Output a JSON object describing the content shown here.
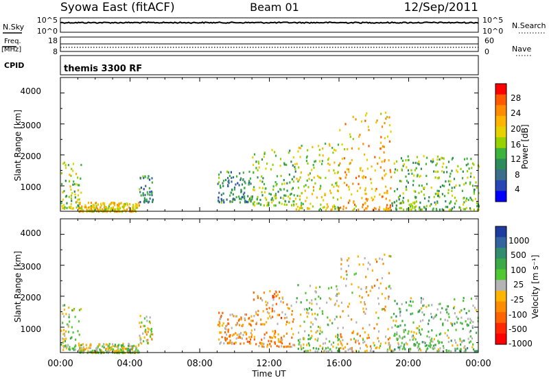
{
  "header": {
    "station": "Syowa East (fitACF)",
    "beam": "Beam 01",
    "date": "12/Sep/2011"
  },
  "top_panels": {
    "nsky_label": "N.Sky",
    "nsky_ticks": [
      "10^5",
      "10^0"
    ],
    "nsearch_label": "N.Search",
    "nsearch_ticks": [
      "10^5",
      "10^0"
    ],
    "freq_label": "Freq.",
    "freq_unit": "[MHz]",
    "freq_ticks": [
      "18",
      "8"
    ],
    "nave_label": "Nave",
    "nave_ticks": [
      "60",
      "0"
    ],
    "cpid_label": "CPID",
    "cpid_value": "themis 3300 RF"
  },
  "power_panel": {
    "ylabel": "Slant Range [km]",
    "yticks": [
      "4000",
      "3000",
      "2000",
      "1000"
    ],
    "colorbar_label": "Power [dB]",
    "colorbar_ticks": [
      "28",
      "24",
      "20",
      "16",
      "12",
      "8",
      "4"
    ],
    "colorbar_colors": [
      "#ff0000",
      "#ff5a00",
      "#ff8c00",
      "#ffb400",
      "#e6d200",
      "#96d200",
      "#3cb43c",
      "#2d8c5a",
      "#3c6e8c",
      "#2846b4",
      "#0000ff"
    ]
  },
  "velocity_panel": {
    "ylabel": "Slant Range [km]",
    "yticks": [
      "4000",
      "3000",
      "2000",
      "1000"
    ],
    "colorbar_label": "Velocity [m s⁻¹]",
    "colorbar_ticks": [
      "1000",
      "500",
      "100",
      "25",
      "-25",
      "-100",
      "-500",
      "-1000"
    ],
    "colorbar_colors": [
      "#1e3ca0",
      "#3264a0",
      "#328c6e",
      "#3caa46",
      "#50c832",
      "#b4b4b4",
      "#ffb400",
      "#ff8c00",
      "#ff6400",
      "#ff2800",
      "#ff0000"
    ]
  },
  "x_axis": {
    "ticks": [
      "00:00",
      "04:00",
      "08:00",
      "12:00",
      "16:00",
      "20:00",
      "00:00"
    ],
    "label": "Time UT"
  },
  "chart_data": [
    {
      "type": "heatmap",
      "title": "Syowa East (fitACF) Beam 01 12/Sep/2011",
      "xlabel": "Time UT",
      "ylabel": "Slant Range [km]",
      "xlim": [
        0,
        24
      ],
      "ylim": [
        180,
        4500
      ],
      "colorbar": {
        "label": "Power [dB]",
        "range": [
          0,
          32
        ]
      },
      "clusters": [
        {
          "t": [
            0.0,
            1.2
          ],
          "r": [
            300,
            1800
          ],
          "value": 16
        },
        {
          "t": [
            1.0,
            4.5
          ],
          "r": [
            200,
            500
          ],
          "value": 20
        },
        {
          "t": [
            4.5,
            5.3
          ],
          "r": [
            500,
            1400
          ],
          "value": 10
        },
        {
          "t": [
            9.0,
            11.0
          ],
          "r": [
            500,
            1500
          ],
          "value": 10
        },
        {
          "t": [
            11.0,
            13.5
          ],
          "r": [
            400,
            2200
          ],
          "value": 14
        },
        {
          "t": [
            13.5,
            16.0
          ],
          "r": [
            250,
            2400
          ],
          "value": 18
        },
        {
          "t": [
            16.0,
            19.0
          ],
          "r": [
            250,
            3400
          ],
          "value": 22
        },
        {
          "t": [
            19.0,
            24.0
          ],
          "r": [
            250,
            2000
          ],
          "value": 14
        }
      ]
    },
    {
      "type": "heatmap",
      "title": "Syowa East (fitACF) Beam 01 12/Sep/2011",
      "xlabel": "Time UT",
      "ylabel": "Slant Range [km]",
      "xlim": [
        0,
        24
      ],
      "ylim": [
        180,
        4500
      ],
      "colorbar": {
        "label": "Velocity [m s⁻¹]",
        "range": [
          -1000,
          1000
        ]
      },
      "clusters": [
        {
          "t": [
            0.0,
            1.2
          ],
          "r": [
            300,
            1800
          ],
          "value": 100
        },
        {
          "t": [
            1.0,
            4.5
          ],
          "r": [
            200,
            500
          ],
          "value": 50
        },
        {
          "t": [
            4.5,
            5.3
          ],
          "r": [
            500,
            1400
          ],
          "value": -100
        },
        {
          "t": [
            9.0,
            11.0
          ],
          "r": [
            500,
            1500
          ],
          "value": -300
        },
        {
          "t": [
            11.0,
            13.5
          ],
          "r": [
            400,
            2200
          ],
          "value": -300
        },
        {
          "t": [
            13.5,
            16.0
          ],
          "r": [
            250,
            2400
          ],
          "value": 100
        },
        {
          "t": [
            16.0,
            19.0
          ],
          "r": [
            250,
            3400
          ],
          "value": -200
        },
        {
          "t": [
            19.0,
            24.0
          ],
          "r": [
            250,
            2000
          ],
          "value": 200
        }
      ]
    }
  ]
}
